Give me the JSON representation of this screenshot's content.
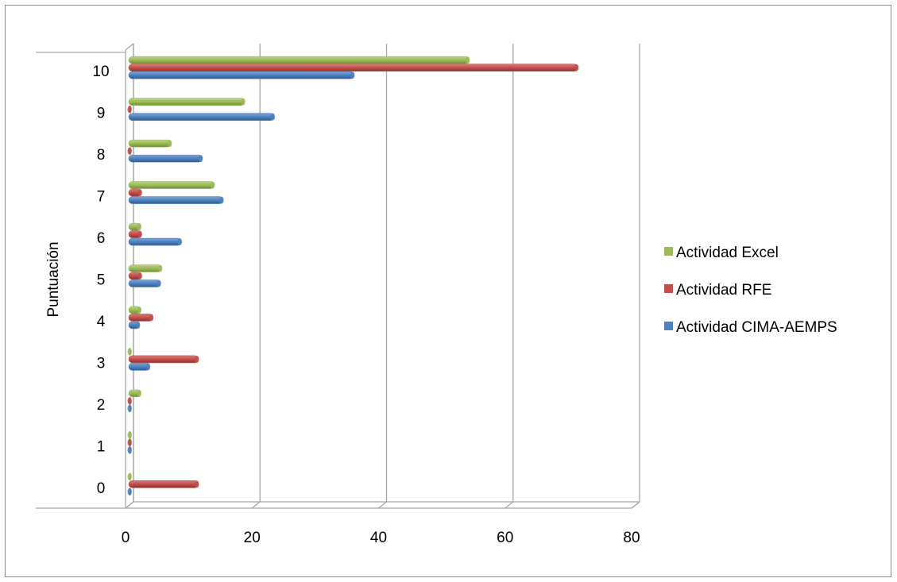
{
  "chart_data": {
    "type": "bar",
    "orientation": "horizontal",
    "style": "3d-clustered",
    "title": "",
    "xlabel": "",
    "ylabel": "Puntuación",
    "xlim": [
      0,
      80
    ],
    "xticks": [
      0,
      20,
      40,
      60,
      80
    ],
    "categories": [
      "0",
      "1",
      "2",
      "3",
      "4",
      "5",
      "6",
      "7",
      "8",
      "9",
      "10"
    ],
    "series": [
      {
        "name": "Actividad CIMA-AEMPS",
        "color": "#4f81bd",
        "values": [
          0,
          0,
          0,
          3.3,
          1.7,
          5.0,
          8.3,
          14.9,
          11.6,
          23.0,
          35.6
        ]
      },
      {
        "name": "Actividad RFE",
        "color": "#c0504d",
        "values": [
          11.0,
          0,
          0,
          11.0,
          3.8,
          2.0,
          2.0,
          2.0,
          0,
          0,
          71.0
        ]
      },
      {
        "name": "Actividad Excel",
        "color": "#9bbb59",
        "values": [
          0,
          0,
          1.9,
          0,
          1.9,
          5.2,
          1.9,
          13.5,
          6.7,
          18.3,
          53.8
        ]
      }
    ],
    "legend": {
      "position": "right",
      "order": [
        "Actividad Excel",
        "Actividad RFE",
        "Actividad CIMA-AEMPS"
      ]
    },
    "grid": {
      "vertical": true,
      "horizontal": false
    }
  }
}
